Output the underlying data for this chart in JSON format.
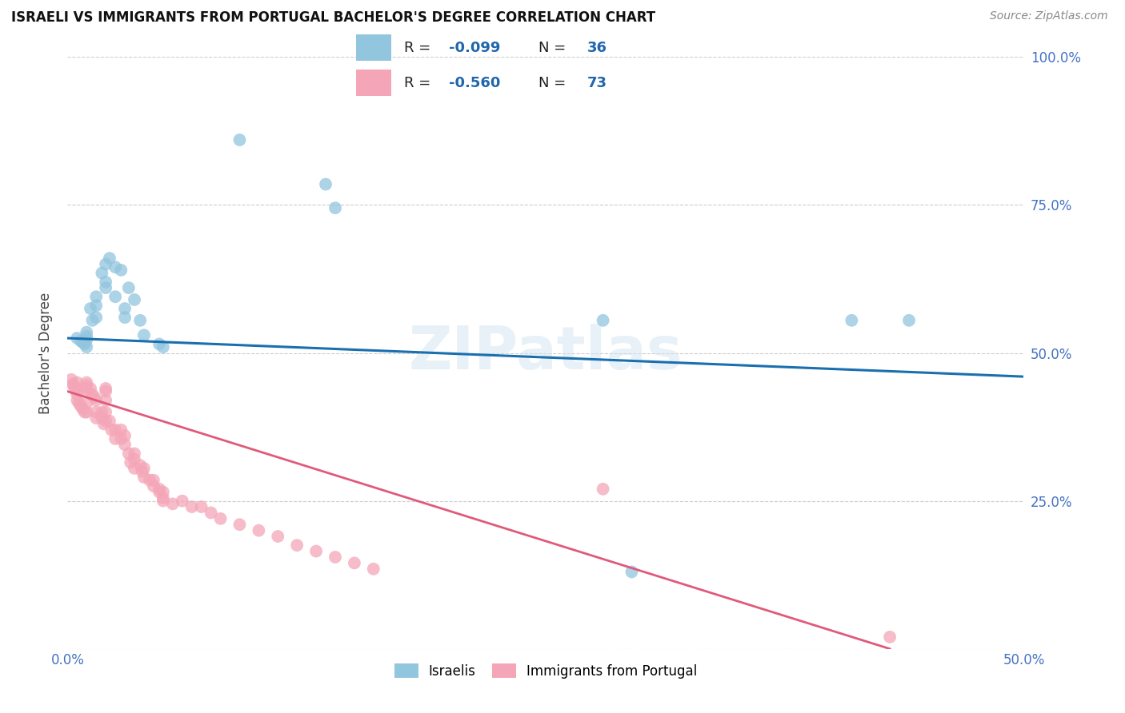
{
  "title": "ISRAELI VS IMMIGRANTS FROM PORTUGAL BACHELOR'S DEGREE CORRELATION CHART",
  "source": "Source: ZipAtlas.com",
  "ylabel": "Bachelor's Degree",
  "watermark": "ZIPatlas",
  "xlim": [
    0.0,
    0.5
  ],
  "ylim": [
    0.0,
    1.0
  ],
  "color_blue": "#92c5de",
  "color_pink": "#f4a6b8",
  "color_blue_line": "#1a6faf",
  "color_pink_line": "#e05a7a",
  "israelis_x": [
    0.005,
    0.007,
    0.008,
    0.009,
    0.01,
    0.01,
    0.01,
    0.01,
    0.012,
    0.013,
    0.015,
    0.015,
    0.015,
    0.018,
    0.02,
    0.02,
    0.02,
    0.022,
    0.025,
    0.025,
    0.028,
    0.03,
    0.03,
    0.032,
    0.035,
    0.038,
    0.04,
    0.048,
    0.05,
    0.09,
    0.135,
    0.14,
    0.28,
    0.41,
    0.44,
    0.295
  ],
  "israelis_y": [
    0.525,
    0.52,
    0.518,
    0.515,
    0.535,
    0.528,
    0.522,
    0.51,
    0.575,
    0.555,
    0.595,
    0.58,
    0.56,
    0.635,
    0.65,
    0.62,
    0.61,
    0.66,
    0.645,
    0.595,
    0.64,
    0.575,
    0.56,
    0.61,
    0.59,
    0.555,
    0.53,
    0.515,
    0.51,
    0.86,
    0.785,
    0.745,
    0.555,
    0.555,
    0.555,
    0.13
  ],
  "portugal_x": [
    0.002,
    0.003,
    0.003,
    0.004,
    0.004,
    0.005,
    0.005,
    0.005,
    0.005,
    0.006,
    0.007,
    0.008,
    0.009,
    0.01,
    0.01,
    0.01,
    0.01,
    0.01,
    0.01,
    0.012,
    0.013,
    0.014,
    0.015,
    0.015,
    0.015,
    0.018,
    0.018,
    0.019,
    0.02,
    0.02,
    0.02,
    0.02,
    0.02,
    0.022,
    0.023,
    0.025,
    0.025,
    0.028,
    0.028,
    0.03,
    0.03,
    0.032,
    0.033,
    0.035,
    0.035,
    0.035,
    0.038,
    0.039,
    0.04,
    0.04,
    0.043,
    0.045,
    0.045,
    0.048,
    0.048,
    0.05,
    0.05,
    0.05,
    0.055,
    0.06,
    0.065,
    0.07,
    0.075,
    0.08,
    0.09,
    0.1,
    0.11,
    0.12,
    0.13,
    0.14,
    0.15,
    0.16,
    0.28,
    0.43
  ],
  "portugal_y": [
    0.455,
    0.448,
    0.445,
    0.442,
    0.438,
    0.45,
    0.44,
    0.43,
    0.42,
    0.415,
    0.41,
    0.405,
    0.4,
    0.45,
    0.445,
    0.44,
    0.435,
    0.415,
    0.4,
    0.44,
    0.43,
    0.425,
    0.42,
    0.4,
    0.39,
    0.4,
    0.39,
    0.38,
    0.44,
    0.435,
    0.42,
    0.4,
    0.385,
    0.385,
    0.37,
    0.37,
    0.355,
    0.37,
    0.355,
    0.36,
    0.345,
    0.33,
    0.315,
    0.33,
    0.32,
    0.305,
    0.31,
    0.3,
    0.305,
    0.29,
    0.285,
    0.285,
    0.275,
    0.27,
    0.265,
    0.265,
    0.255,
    0.25,
    0.245,
    0.25,
    0.24,
    0.24,
    0.23,
    0.22,
    0.21,
    0.2,
    0.19,
    0.175,
    0.165,
    0.155,
    0.145,
    0.135,
    0.27,
    0.02
  ],
  "blue_line_x": [
    0.0,
    0.5
  ],
  "blue_line_y": [
    0.525,
    0.46
  ],
  "pink_line_x": [
    0.0,
    0.43
  ],
  "pink_line_y": [
    0.435,
    0.0
  ]
}
